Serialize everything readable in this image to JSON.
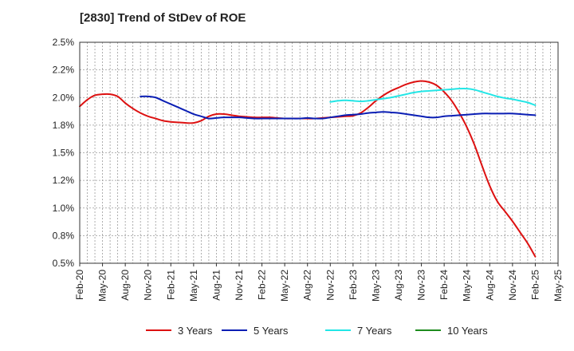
{
  "chart_data": {
    "type": "line",
    "title": "[2830]  Trend of StDev of ROE",
    "xlabel": "",
    "ylabel": "",
    "x_ticks": [
      "Feb-20",
      "May-20",
      "Aug-20",
      "Nov-20",
      "Feb-21",
      "May-21",
      "Aug-21",
      "Nov-21",
      "Feb-22",
      "May-22",
      "Aug-22",
      "Nov-22",
      "Feb-23",
      "May-23",
      "Aug-23",
      "Nov-23",
      "Feb-24",
      "May-24",
      "Aug-24",
      "Nov-24",
      "Feb-25",
      "May-25"
    ],
    "y_ticks": [
      "0.5%",
      "0.8%",
      "1.0%",
      "1.2%",
      "1.5%",
      "1.8%",
      "2.0%",
      "2.2%",
      "2.5%"
    ],
    "ylim": [
      0.5,
      2.5
    ],
    "y_unit": "%",
    "grid": true,
    "legend_position": "bottom",
    "colors": {
      "3y": "#dd1111",
      "5y": "#0a1eb4",
      "7y": "#22e6e6",
      "10y": "#1e8c1e"
    },
    "series": [
      {
        "name": "3 Years",
        "color": "#dd1111",
        "points": [
          [
            "Feb-20",
            1.92
          ],
          [
            "Mar-20",
            1.98
          ],
          [
            "Apr-20",
            2.02
          ],
          [
            "May-20",
            2.03
          ],
          [
            "Jun-20",
            2.03
          ],
          [
            "Jul-20",
            2.01
          ],
          [
            "Aug-20",
            1.95
          ],
          [
            "Sep-20",
            1.9
          ],
          [
            "Oct-20",
            1.86
          ],
          [
            "Nov-20",
            1.83
          ],
          [
            "Dec-20",
            1.81
          ],
          [
            "Jan-21",
            1.79
          ],
          [
            "Feb-21",
            1.78
          ],
          [
            "Mar-21",
            1.775
          ],
          [
            "Apr-21",
            1.77
          ],
          [
            "May-21",
            1.77
          ],
          [
            "Jun-21",
            1.79
          ],
          [
            "Jul-21",
            1.83
          ],
          [
            "Aug-21",
            1.85
          ],
          [
            "Sep-21",
            1.85
          ],
          [
            "Oct-21",
            1.84
          ],
          [
            "Nov-21",
            1.83
          ],
          [
            "Dec-21",
            1.825
          ],
          [
            "Jan-22",
            1.82
          ],
          [
            "Feb-22",
            1.82
          ],
          [
            "Mar-22",
            1.82
          ],
          [
            "Apr-22",
            1.815
          ],
          [
            "May-22",
            1.81
          ],
          [
            "Jun-22",
            1.81
          ],
          [
            "Jul-22",
            1.81
          ],
          [
            "Aug-22",
            1.81
          ],
          [
            "Sep-22",
            1.81
          ],
          [
            "Oct-22",
            1.815
          ],
          [
            "Nov-22",
            1.82
          ],
          [
            "Dec-22",
            1.825
          ],
          [
            "Jan-23",
            1.83
          ],
          [
            "Feb-23",
            1.835
          ],
          [
            "Mar-23",
            1.86
          ],
          [
            "Apr-23",
            1.91
          ],
          [
            "May-23",
            1.97
          ],
          [
            "Jun-23",
            2.02
          ],
          [
            "Jul-23",
            2.06
          ],
          [
            "Aug-23",
            2.09
          ],
          [
            "Sep-23",
            2.12
          ],
          [
            "Oct-23",
            2.14
          ],
          [
            "Nov-23",
            2.15
          ],
          [
            "Dec-23",
            2.14
          ],
          [
            "Jan-24",
            2.11
          ],
          [
            "Feb-24",
            2.05
          ],
          [
            "Mar-24",
            1.97
          ],
          [
            "Apr-24",
            1.86
          ],
          [
            "May-24",
            1.73
          ],
          [
            "Jun-24",
            1.57
          ],
          [
            "Jul-24",
            1.38
          ],
          [
            "Aug-24",
            1.2
          ],
          [
            "Sep-24",
            1.06
          ],
          [
            "Oct-24",
            0.97
          ],
          [
            "Nov-24",
            0.88
          ],
          [
            "Dec-24",
            0.78
          ],
          [
            "Jan-25",
            0.68
          ],
          [
            "Feb-25",
            0.56
          ]
        ]
      },
      {
        "name": "5 Years",
        "color": "#0a1eb4",
        "points": [
          [
            "Oct-20",
            2.01
          ],
          [
            "Nov-20",
            2.01
          ],
          [
            "Dec-20",
            2.0
          ],
          [
            "Jan-21",
            1.97
          ],
          [
            "Feb-21",
            1.94
          ],
          [
            "Mar-21",
            1.91
          ],
          [
            "Apr-21",
            1.88
          ],
          [
            "May-21",
            1.85
          ],
          [
            "Jun-21",
            1.83
          ],
          [
            "Jul-21",
            1.81
          ],
          [
            "Aug-21",
            1.815
          ],
          [
            "Sep-21",
            1.82
          ],
          [
            "Oct-21",
            1.82
          ],
          [
            "Nov-21",
            1.82
          ],
          [
            "Dec-21",
            1.815
          ],
          [
            "Jan-22",
            1.81
          ],
          [
            "Feb-22",
            1.81
          ],
          [
            "Mar-22",
            1.81
          ],
          [
            "Apr-22",
            1.81
          ],
          [
            "May-22",
            1.81
          ],
          [
            "Jun-22",
            1.81
          ],
          [
            "Jul-22",
            1.81
          ],
          [
            "Aug-22",
            1.815
          ],
          [
            "Sep-22",
            1.81
          ],
          [
            "Oct-22",
            1.81
          ],
          [
            "Nov-22",
            1.82
          ],
          [
            "Dec-22",
            1.83
          ],
          [
            "Jan-23",
            1.84
          ],
          [
            "Feb-23",
            1.845
          ],
          [
            "Mar-23",
            1.85
          ],
          [
            "Apr-23",
            1.86
          ],
          [
            "May-23",
            1.865
          ],
          [
            "Jun-23",
            1.87
          ],
          [
            "Jul-23",
            1.865
          ],
          [
            "Aug-23",
            1.86
          ],
          [
            "Sep-23",
            1.85
          ],
          [
            "Oct-23",
            1.84
          ],
          [
            "Nov-23",
            1.83
          ],
          [
            "Dec-23",
            1.82
          ],
          [
            "Jan-24",
            1.82
          ],
          [
            "Feb-24",
            1.83
          ],
          [
            "Mar-24",
            1.835
          ],
          [
            "Apr-24",
            1.84
          ],
          [
            "May-24",
            1.845
          ],
          [
            "Jun-24",
            1.85
          ],
          [
            "Jul-24",
            1.855
          ],
          [
            "Aug-24",
            1.855
          ],
          [
            "Sep-24",
            1.855
          ],
          [
            "Oct-24",
            1.855
          ],
          [
            "Nov-24",
            1.855
          ],
          [
            "Dec-24",
            1.85
          ],
          [
            "Jan-25",
            1.845
          ],
          [
            "Feb-25",
            1.84
          ]
        ]
      },
      {
        "name": "7 Years",
        "color": "#22e6e6",
        "points": [
          [
            "Nov-22",
            1.96
          ],
          [
            "Dec-22",
            1.97
          ],
          [
            "Jan-23",
            1.975
          ],
          [
            "Feb-23",
            1.97
          ],
          [
            "Mar-23",
            1.965
          ],
          [
            "Apr-23",
            1.97
          ],
          [
            "May-23",
            1.98
          ],
          [
            "Jun-23",
            1.99
          ],
          [
            "Jul-23",
            2.0
          ],
          [
            "Aug-23",
            2.015
          ],
          [
            "Sep-23",
            2.03
          ],
          [
            "Oct-23",
            2.045
          ],
          [
            "Nov-23",
            2.055
          ],
          [
            "Dec-23",
            2.06
          ],
          [
            "Jan-24",
            2.065
          ],
          [
            "Feb-24",
            2.07
          ],
          [
            "Mar-24",
            2.075
          ],
          [
            "Apr-24",
            2.08
          ],
          [
            "May-24",
            2.08
          ],
          [
            "Jun-24",
            2.07
          ],
          [
            "Jul-24",
            2.05
          ],
          [
            "Aug-24",
            2.03
          ],
          [
            "Sep-24",
            2.01
          ],
          [
            "Oct-24",
            1.995
          ],
          [
            "Nov-24",
            1.985
          ],
          [
            "Dec-24",
            1.97
          ],
          [
            "Jan-25",
            1.955
          ],
          [
            "Feb-25",
            1.93
          ]
        ]
      },
      {
        "name": "10 Years",
        "color": "#1e8c1e",
        "points": []
      }
    ]
  }
}
